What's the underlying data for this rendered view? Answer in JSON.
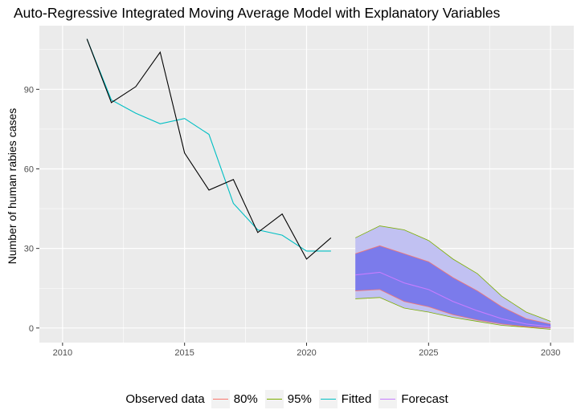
{
  "chart_data": {
    "type": "line",
    "title": "Auto-Regressive Integrated Moving Average Model with Explanatory Variables",
    "xlabel": "",
    "ylabel": "Number of human rabies cases",
    "xlim": [
      2009.05,
      2030.95
    ],
    "ylim": [
      -5.5,
      114
    ],
    "x_ticks": [
      2010,
      2015,
      2020,
      2025,
      2030
    ],
    "y_ticks": [
      0,
      30,
      60,
      90
    ],
    "grid": true,
    "legend": {
      "position": "bottom",
      "title": "Observed data"
    },
    "series": [
      {
        "name": "Observed data",
        "color": "#000000",
        "x": [
          2011,
          2012,
          2013,
          2014,
          2015,
          2016,
          2017,
          2018,
          2019,
          2020,
          2021
        ],
        "y": [
          109,
          85,
          91,
          104,
          66,
          52,
          56,
          36,
          43,
          26,
          34
        ]
      },
      {
        "name": "Fitted",
        "color": "#00BFC4",
        "x": [
          2011,
          2012,
          2013,
          2014,
          2015,
          2016,
          2017,
          2018,
          2019,
          2020,
          2021
        ],
        "y": [
          109,
          86,
          81,
          77,
          79,
          73,
          47,
          37,
          35,
          29,
          29
        ]
      },
      {
        "name": "Forecast",
        "color": "#C77CFF",
        "x": [
          2022,
          2023,
          2024,
          2025,
          2026,
          2027,
          2028,
          2029,
          2030
        ],
        "y": [
          20,
          21,
          17,
          14.5,
          10,
          6.5,
          3.5,
          1.5,
          0.5
        ]
      },
      {
        "name": "80%",
        "color": "#F8766D",
        "type": "band",
        "fill": "#7B7BEB",
        "x": [
          2022,
          2023,
          2024,
          2025,
          2026,
          2027,
          2028,
          2029,
          2030
        ],
        "lower": [
          14,
          14.5,
          10,
          8,
          5,
          3,
          1.5,
          0.5,
          0
        ],
        "upper": [
          28,
          31,
          28,
          25,
          19,
          14,
          8,
          3.5,
          1.5
        ]
      },
      {
        "name": "95%",
        "color": "#7CAE00",
        "type": "band",
        "fill": "#C1C1F2",
        "x": [
          2022,
          2023,
          2024,
          2025,
          2026,
          2027,
          2028,
          2029,
          2030
        ],
        "lower": [
          11,
          11.5,
          7.5,
          6,
          4,
          2.5,
          1,
          0.3,
          -0.5
        ],
        "upper": [
          34,
          38.5,
          37,
          33,
          26,
          20.5,
          12,
          6,
          2.5
        ]
      }
    ],
    "legend_entries": [
      "80%",
      "95%",
      "Fitted",
      "Forecast"
    ]
  }
}
